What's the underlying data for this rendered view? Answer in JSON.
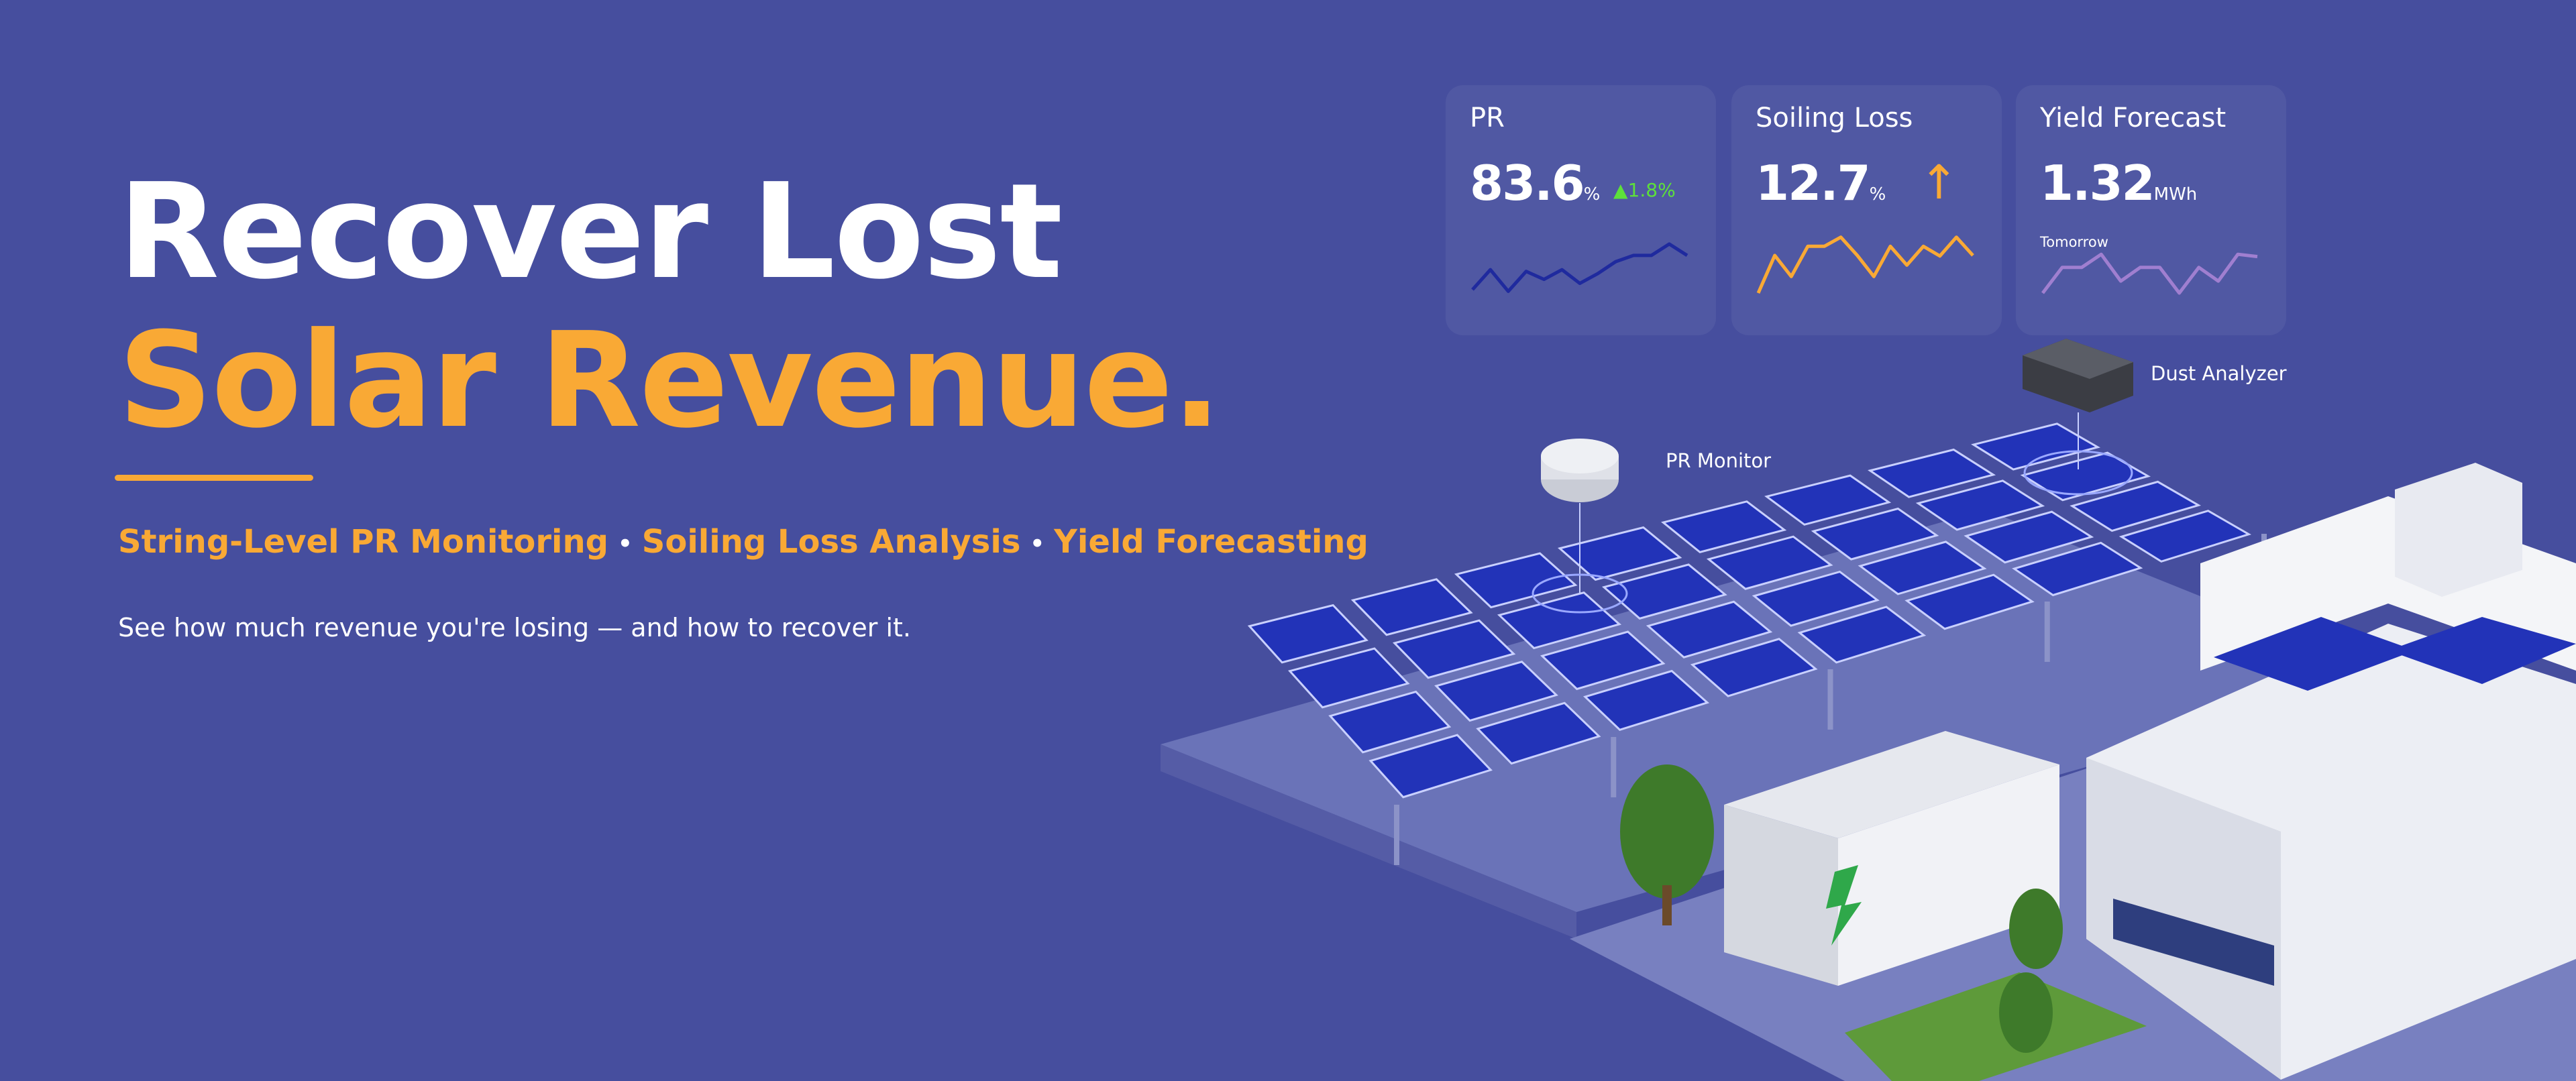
{
  "headline": {
    "line1": "Recover Lost",
    "line2": "Solar Revenue."
  },
  "features": [
    "String-Level PR Monitoring",
    "Soiling Loss Analysis",
    "Yield Forecasting"
  ],
  "feature_separator": "•",
  "subheadline": "See how much revenue you're losing — and how to recover it.",
  "cards": [
    {
      "title": "PR",
      "value": "83.6",
      "unit": "%",
      "delta": "▲1.8%",
      "delta_color": "#5de03a",
      "line_color": "#1f2a9e",
      "sparkline": [
        0.06,
        0.41,
        0.03,
        0.38,
        0.24,
        0.41,
        0.17,
        0.34,
        0.55,
        0.66,
        0.66,
        0.86,
        0.66
      ]
    },
    {
      "title": "Soiling Loss",
      "value": "12.7",
      "unit": "%",
      "trend_icon": "arrow-up-icon",
      "trend_glyph": "↑",
      "line_color": "#f9a935",
      "sparkline": [
        0.0,
        0.66,
        0.29,
        0.82,
        0.82,
        0.98,
        0.66,
        0.29,
        0.82,
        0.49,
        0.82,
        0.65,
        0.98,
        0.66
      ]
    },
    {
      "title": "Yield Forecast",
      "value": "1.32",
      "unit": "MWh",
      "subtitle": "Tomorrow",
      "line_color": "#a07fd0",
      "sparkline": [
        0.0,
        0.45,
        0.45,
        0.68,
        0.21,
        0.45,
        0.45,
        0.0,
        0.45,
        0.21,
        0.68,
        0.64
      ]
    }
  ],
  "labels": {
    "pr_monitor": "PR Monitor",
    "dust_analyzer": "Dust Analyzer"
  },
  "colors": {
    "background": "#464e9e",
    "accent": "#f9a935",
    "panel": "#2233b8"
  }
}
